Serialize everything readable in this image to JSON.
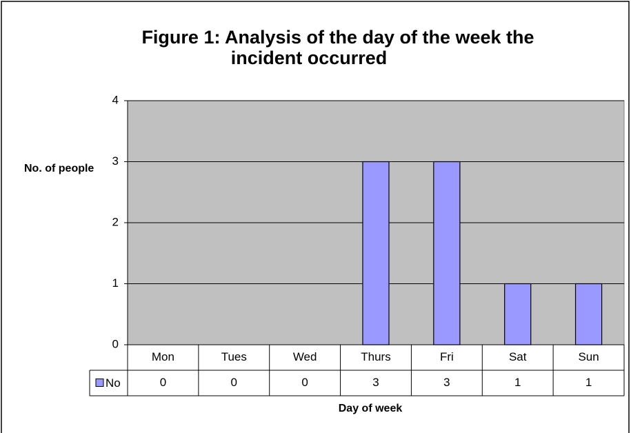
{
  "chart_data": {
    "type": "bar",
    "title": [
      "Figure 1: Analysis of the day of the week the",
      "incident occurred"
    ],
    "y_label": "No. of people",
    "x_label": "Day of week",
    "categories": [
      "Mon",
      "Tues",
      "Wed",
      "Thurs",
      "Fri",
      "Sat",
      "Sun"
    ],
    "series": [
      {
        "name": "No",
        "color": "#9999ff",
        "values": [
          0,
          0,
          0,
          3,
          3,
          1,
          1
        ]
      }
    ],
    "ylim": [
      0,
      4
    ],
    "yticks": [
      0,
      1,
      2,
      3,
      4
    ],
    "grid": true,
    "data_table": true,
    "plot_background": "#c0c0c0"
  }
}
